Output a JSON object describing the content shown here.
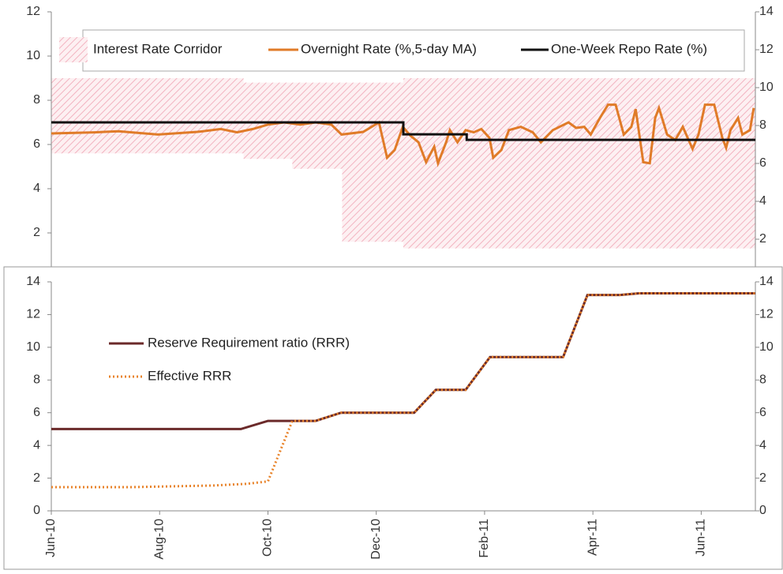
{
  "chart_data": [
    {
      "type": "line",
      "xlim": [
        0,
        13
      ],
      "ylim": [
        0,
        12
      ],
      "yticks": [
        2,
        4,
        6,
        8,
        10,
        12
      ],
      "y2lim": [
        0,
        14
      ],
      "y2ticks": [
        2,
        4,
        6,
        8,
        10,
        12,
        14
      ],
      "series": [
        {
          "name": "Interest Rate Corridor",
          "color": "#f2b3c0",
          "kind": "band",
          "x": [
            0,
            3.55,
            3.55,
            4.45,
            4.45,
            5.37,
            5.37,
            6.5,
            6.5,
            13
          ],
          "values": [
            9,
            9,
            8.8,
            8.8,
            8.8,
            8.8,
            8.8,
            8.8,
            9,
            9
          ],
          "lower": [
            5.6,
            5.6,
            5.35,
            5.35,
            4.9,
            4.9,
            1.6,
            1.6,
            1.3,
            1.3
          ]
        },
        {
          "name": "Overnight Rate (%,5-day MA)",
          "color": "#e07b28",
          "x": [
            0,
            0.8,
            1.24,
            1.97,
            2.7,
            3.13,
            3.43,
            3.72,
            4.0,
            4.3,
            4.6,
            4.88,
            5.17,
            5.36,
            5.76,
            6.05,
            6.2,
            6.34,
            6.49,
            6.63,
            6.78,
            6.92,
            7.07,
            7.14,
            7.29,
            7.36,
            7.5,
            7.65,
            7.8,
            7.94,
            8.09,
            8.16,
            8.31,
            8.45,
            8.67,
            8.89,
            9.04,
            9.26,
            9.55,
            9.69,
            9.84,
            9.96,
            10.13,
            10.28,
            10.42,
            10.57,
            10.71,
            10.79,
            10.93,
            11.05,
            11.15,
            11.22,
            11.37,
            11.52,
            11.66,
            11.84,
            11.95,
            12.07,
            12.24,
            12.39,
            12.46,
            12.54,
            12.68,
            12.76,
            12.9,
            12.97
          ],
          "values": [
            6.5,
            6.55,
            6.6,
            6.45,
            6.57,
            6.7,
            6.55,
            6.7,
            6.9,
            7.0,
            6.9,
            7.0,
            6.9,
            6.45,
            6.57,
            7.0,
            5.4,
            5.75,
            6.8,
            6.4,
            6.1,
            5.2,
            5.9,
            5.15,
            6.1,
            6.65,
            6.1,
            6.65,
            6.55,
            6.7,
            6.3,
            5.4,
            5.75,
            6.65,
            6.8,
            6.55,
            6.1,
            6.65,
            7.0,
            6.75,
            6.8,
            6.45,
            7.2,
            7.8,
            7.8,
            6.45,
            6.8,
            7.6,
            5.2,
            5.15,
            7.2,
            7.65,
            6.45,
            6.2,
            6.8,
            5.8,
            6.45,
            7.8,
            7.8,
            6.3,
            5.85,
            6.65,
            7.2,
            6.45,
            6.65,
            7.65
          ]
        },
        {
          "name": "One-Week Repo Rate (%)",
          "color": "#111111",
          "x": [
            0,
            6.5,
            6.5,
            7.67,
            7.67,
            13
          ],
          "values": [
            7.0,
            7.0,
            6.46,
            6.46,
            6.21,
            6.21
          ]
        }
      ]
    },
    {
      "type": "line",
      "xlim": [
        0,
        13
      ],
      "ylim": [
        0,
        14
      ],
      "yticks": [
        0,
        2,
        4,
        6,
        8,
        10,
        12,
        14
      ],
      "y2lim": [
        0,
        14
      ],
      "y2ticks": [
        0,
        2,
        4,
        6,
        8,
        10,
        12,
        14
      ],
      "xticks": [
        {
          "value": 0,
          "label": "Jun-10"
        },
        {
          "value": 2,
          "label": "Aug-10"
        },
        {
          "value": 4,
          "label": "Oct-10"
        },
        {
          "value": 6,
          "label": "Dec-10"
        },
        {
          "value": 8,
          "label": "Feb-11"
        },
        {
          "value": 10,
          "label": "Apr-11"
        },
        {
          "value": 12,
          "label": "Jun-11"
        }
      ],
      "series": [
        {
          "name": "Reserve Requirement ratio (RRR)",
          "color": "#6b2a2a",
          "x": [
            0,
            3.5,
            4.0,
            4.88,
            5.35,
            6.7,
            7.1,
            7.65,
            8.1,
            9.45,
            9.9,
            10.5,
            10.85,
            13
          ],
          "values": [
            5,
            5,
            5.5,
            5.5,
            6.0,
            6.0,
            7.4,
            7.4,
            9.4,
            9.4,
            13.2,
            13.2,
            13.3,
            13.3
          ]
        },
        {
          "name": "Effective RRR",
          "color": "#e8832a",
          "dash": true,
          "x": [
            0,
            1.5,
            3.0,
            3.6,
            4.0,
            4.45,
            4.88,
            5.35,
            6.7,
            7.1,
            7.65,
            8.1,
            9.45,
            9.9,
            10.5,
            10.85,
            13
          ],
          "values": [
            1.45,
            1.45,
            1.55,
            1.65,
            1.8,
            5.5,
            5.5,
            6.0,
            6.0,
            7.4,
            7.4,
            9.4,
            9.4,
            13.2,
            13.2,
            13.3,
            13.3
          ]
        }
      ]
    }
  ]
}
